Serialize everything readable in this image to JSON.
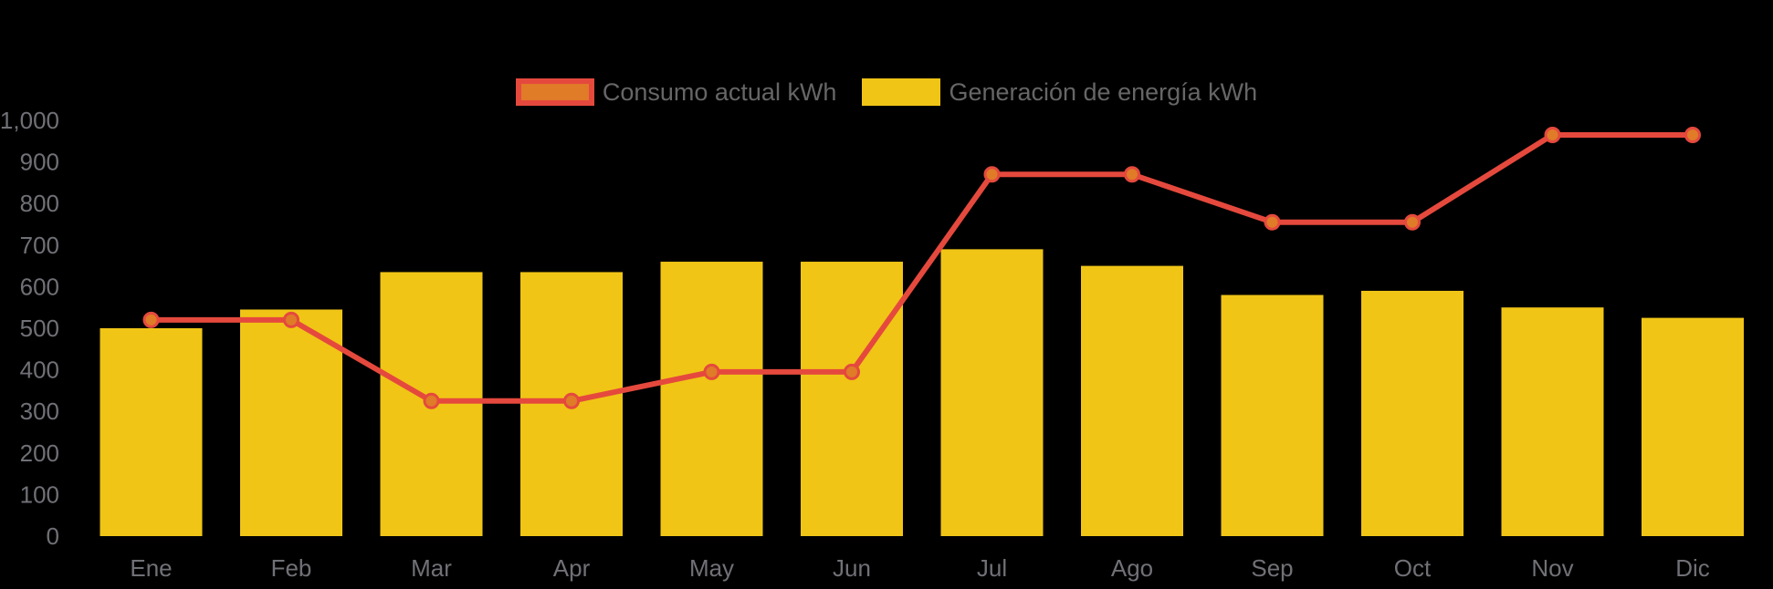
{
  "colors": {
    "background": "#000000",
    "bar": "#F0C516",
    "line": "#E5493D",
    "point_fill": "#E07B28",
    "axis_label": "#707177",
    "legend_text": "#666666"
  },
  "chart_data": {
    "type": "bar+line",
    "categories": [
      "Ene",
      "Feb",
      "Mar",
      "Apr",
      "May",
      "Jun",
      "Jul",
      "Ago",
      "Sep",
      "Oct",
      "Nov",
      "Dic"
    ],
    "series": [
      {
        "name": "Consumo actual kWh",
        "type": "line",
        "color": "#E5493D",
        "point_color": "#E07B28",
        "values": [
          520,
          520,
          325,
          325,
          395,
          395,
          870,
          870,
          755,
          755,
          965,
          965
        ]
      },
      {
        "name": "Generación de energía kWh",
        "type": "bar",
        "color": "#F0C516",
        "values": [
          500,
          545,
          635,
          635,
          660,
          660,
          690,
          650,
          580,
          590,
          550,
          525
        ]
      }
    ],
    "title": "",
    "xlabel": "",
    "ylabel": "",
    "ylim": [
      0,
      1000
    ],
    "ytick_step": 100,
    "ytick_labels": [
      "0",
      "100",
      "200",
      "300",
      "400",
      "500",
      "600",
      "700",
      "800",
      "900",
      "1,000"
    ],
    "grid": "off",
    "legend_position": "top-center"
  }
}
